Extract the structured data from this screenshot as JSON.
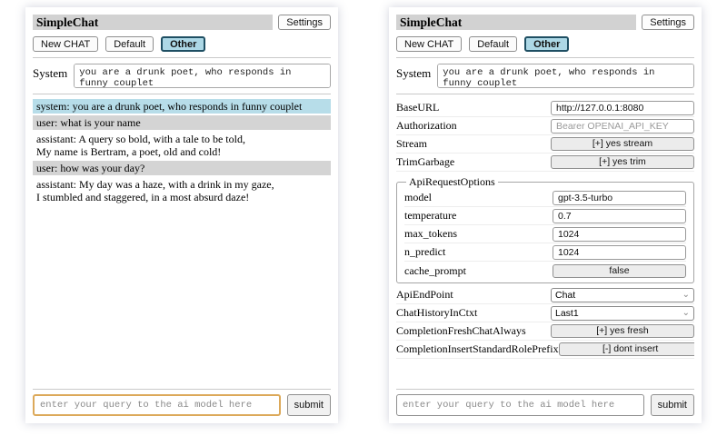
{
  "colors": {
    "titlebar_bg": "#d2d2d2",
    "active_session_bg": "#add8e6",
    "active_session_border": "#1f4f63",
    "system_msg_bg": "#b7dde9",
    "user_msg_bg": "#d4d4d4",
    "query_focus_border": "#dca95a"
  },
  "left": {
    "title": "SimpleChat",
    "settings_button": "Settings",
    "toolbar": {
      "new_chat": "New CHAT",
      "session_default": "Default",
      "session_other": "Other"
    },
    "system_label": "System",
    "system_prompt": "you are a drunk poet, who responds in funny couplet",
    "messages": [
      {
        "role": "system",
        "text": "system: you are a drunk poet, who responds in funny couplet"
      },
      {
        "role": "user",
        "text": "user: what is your name"
      },
      {
        "role": "assistant",
        "text": "assistant: A query so bold, with a tale to be told,\nMy name is Bertram, a poet, old and cold!"
      },
      {
        "role": "user",
        "text": "user: how was your day?"
      },
      {
        "role": "assistant",
        "text": "assistant: My day was a haze, with a drink in my gaze,\nI stumbled and staggered, in a most absurd daze!"
      }
    ],
    "query_placeholder": "enter your query to the ai model here",
    "submit_label": "submit"
  },
  "right": {
    "title": "SimpleChat",
    "settings_button": "Settings",
    "toolbar": {
      "new_chat": "New CHAT",
      "session_default": "Default",
      "session_other": "Other"
    },
    "system_label": "System",
    "system_prompt": "you are a drunk poet, who responds in funny couplet",
    "settings": {
      "baseurl": {
        "label": "BaseURL",
        "value": "http://127.0.0.1:8080"
      },
      "authorization": {
        "label": "Authorization",
        "placeholder": "Bearer OPENAI_API_KEY"
      },
      "stream": {
        "label": "Stream",
        "button": "[+] yes stream"
      },
      "trimgarbage": {
        "label": "TrimGarbage",
        "button": "[+] yes trim"
      },
      "api_request_options": {
        "legend": "ApiRequestOptions",
        "model": {
          "label": "model",
          "value": "gpt-3.5-turbo"
        },
        "temperature": {
          "label": "temperature",
          "value": "0.7"
        },
        "max_tokens": {
          "label": "max_tokens",
          "value": "1024"
        },
        "n_predict": {
          "label": "n_predict",
          "value": "1024"
        },
        "cache_prompt": {
          "label": "cache_prompt",
          "button": "false"
        }
      },
      "api_endpoint": {
        "label": "ApiEndPoint",
        "value": "Chat"
      },
      "chat_history_in_ctxt": {
        "label": "ChatHistoryInCtxt",
        "value": "Last1"
      },
      "completion_fresh_chat_always": {
        "label": "CompletionFreshChatAlways",
        "button": "[+] yes fresh"
      },
      "completion_insert_standard_role_prefix": {
        "label": "CompletionInsertStandardRolePrefix",
        "button": "[-] dont insert"
      }
    },
    "query_placeholder": "enter your query to the ai model here",
    "submit_label": "submit"
  }
}
